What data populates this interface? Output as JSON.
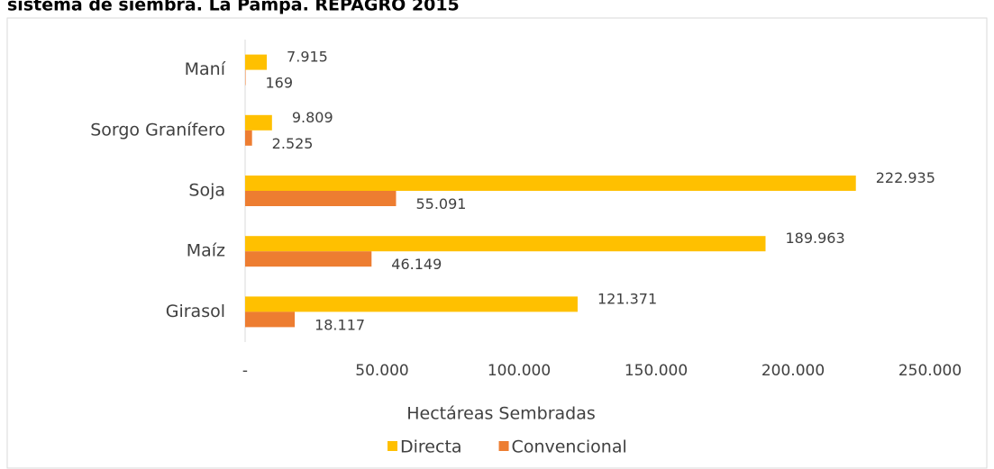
{
  "chart_data": {
    "type": "bar",
    "orientation": "horizontal",
    "title": "sistema de siembra. La Pampa. REPAGRO 2015",
    "x_label": "Hectáreas Sembradas",
    "categories": [
      "Maní",
      "Sorgo Granífero",
      "Soja",
      "Maíz",
      "Girasol"
    ],
    "series": [
      {
        "name": "Directa",
        "color": "#ffc000",
        "values": [
          7915,
          9809,
          222935,
          189963,
          121371
        ],
        "value_labels": [
          "7.915",
          "9.809",
          "222.935",
          "189.963",
          "121.371"
        ]
      },
      {
        "name": "Convencional",
        "color": "#ed7d31",
        "values": [
          169,
          2525,
          55091,
          46149,
          18117
        ],
        "value_labels": [
          "169",
          "2.525",
          "55.091",
          "46.149",
          "18.117"
        ]
      }
    ],
    "xlim": [
      0,
      250000
    ],
    "xticks": [
      {
        "value": 0,
        "label": "-"
      },
      {
        "value": 50000,
        "label": "50.000"
      },
      {
        "value": 100000,
        "label": "100.000"
      },
      {
        "value": 150000,
        "label": "150.000"
      },
      {
        "value": 200000,
        "label": "200.000"
      },
      {
        "value": 250000,
        "label": "250.000"
      }
    ],
    "legend": "bottom",
    "grid": false
  }
}
